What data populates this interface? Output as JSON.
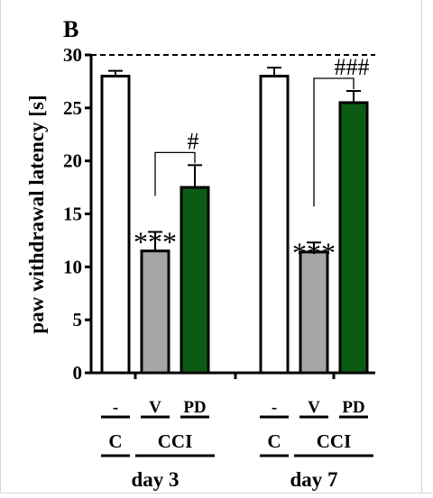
{
  "panel_label": "B",
  "chart_data": {
    "type": "bar",
    "ylabel": "paw withdrawal latency [s]",
    "ylim": [
      0,
      30
    ],
    "yticks": [
      0,
      5,
      10,
      15,
      20,
      25,
      30
    ],
    "reference_line": 30,
    "colors": {
      "C": "#ffffff",
      "V": "#a6a6a8",
      "PD": "#0b5c12"
    },
    "groups": [
      {
        "name": "day 3",
        "bars": [
          {
            "label": "-",
            "treatment": "C",
            "value": 28.0,
            "error": 0.5,
            "sig": ""
          },
          {
            "label": "V",
            "treatment": "CCI",
            "value": 11.5,
            "error": 1.8,
            "sig": "***"
          },
          {
            "label": "PD",
            "treatment": "CCI",
            "value": 17.5,
            "error": 2.1,
            "sig": ""
          }
        ],
        "comparison": {
          "from": 1,
          "to": 2,
          "label": "#"
        }
      },
      {
        "name": "day 7",
        "bars": [
          {
            "label": "-",
            "treatment": "C",
            "value": 28.0,
            "error": 0.8,
            "sig": ""
          },
          {
            "label": "V",
            "treatment": "CCI",
            "value": 11.4,
            "error": 0.9,
            "sig": "***"
          },
          {
            "label": "PD",
            "treatment": "CCI",
            "value": 25.5,
            "error": 1.1,
            "sig": ""
          }
        ],
        "comparison": {
          "from": 1,
          "to": 2,
          "label": "###"
        }
      }
    ]
  }
}
